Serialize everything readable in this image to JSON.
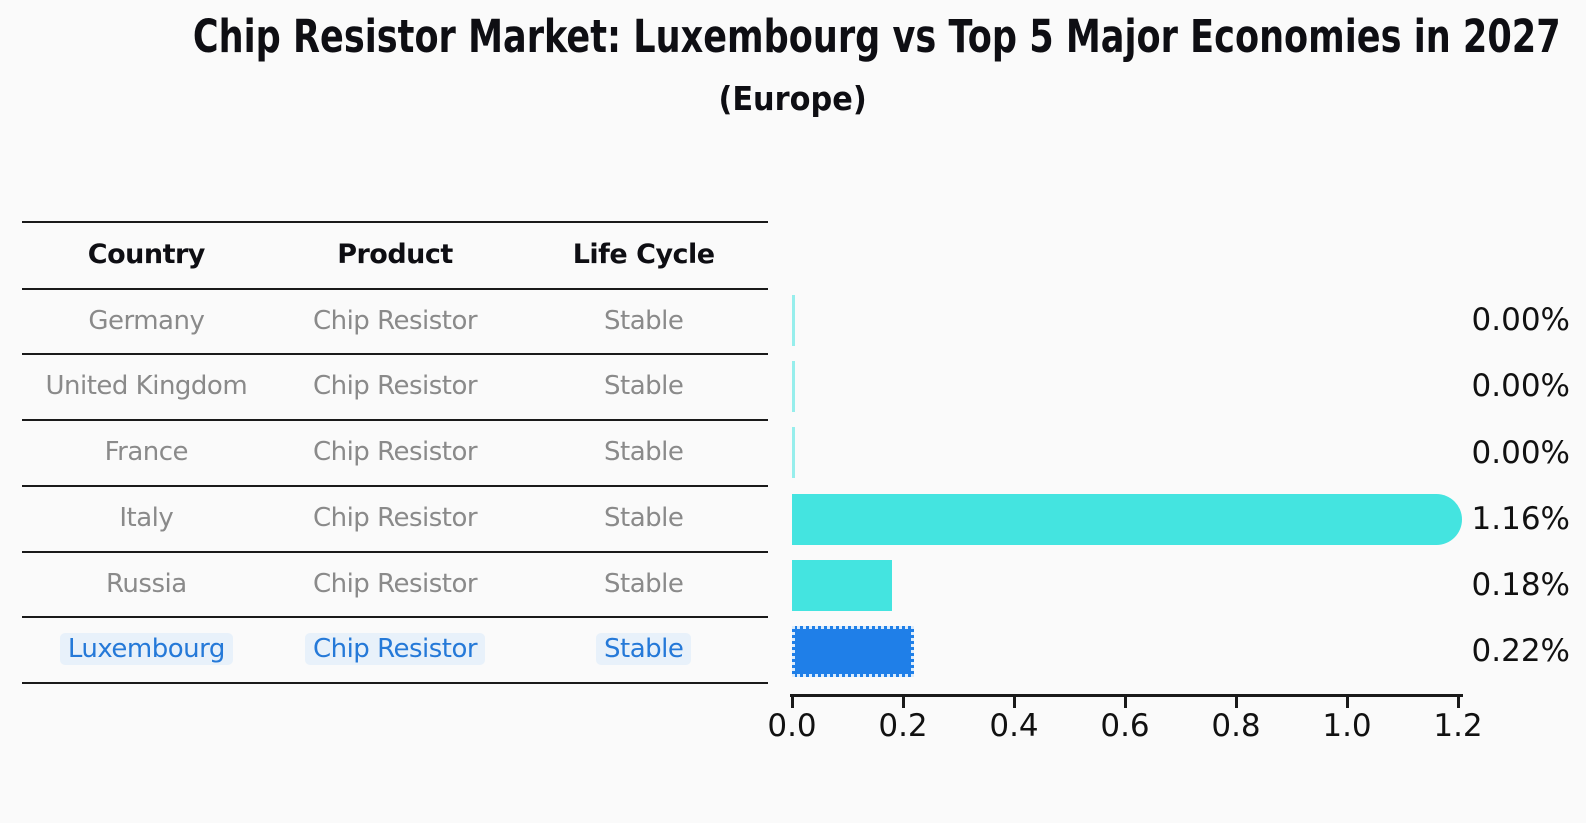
{
  "title": "Chip Resistor Market: Luxembourg vs Top 5 Major Economies in 2027",
  "subtitle": "(Europe)",
  "table": {
    "headers": [
      "Country",
      "Product",
      "Life Cycle"
    ],
    "rows": [
      {
        "country": "Germany",
        "product": "Chip Resistor",
        "life_cycle": "Stable",
        "highlight": false
      },
      {
        "country": "United Kingdom",
        "product": "Chip Resistor",
        "life_cycle": "Stable",
        "highlight": false
      },
      {
        "country": "France",
        "product": "Chip Resistor",
        "life_cycle": "Stable",
        "highlight": false
      },
      {
        "country": "Italy",
        "product": "Chip Resistor",
        "life_cycle": "Stable",
        "highlight": false
      },
      {
        "country": "Russia",
        "product": "Chip Resistor",
        "life_cycle": "Stable",
        "highlight": false
      },
      {
        "country": "Luxembourg",
        "product": "Chip Resistor",
        "life_cycle": "Stable",
        "highlight": true
      }
    ]
  },
  "chart_data": {
    "type": "bar",
    "orientation": "horizontal",
    "title": "Chip Resistor Market: Luxembourg vs Top 5 Major Economies in 2027",
    "subtitle": "(Europe)",
    "categories": [
      "Germany",
      "United Kingdom",
      "France",
      "Italy",
      "Russia",
      "Luxembourg"
    ],
    "values": [
      0.0,
      0.0,
      0.0,
      1.16,
      0.18,
      0.22
    ],
    "value_labels": [
      "0.00%",
      "0.00%",
      "0.00%",
      "1.16%",
      "0.18%",
      "0.22%"
    ],
    "xlim": [
      0.0,
      1.2
    ],
    "x_ticks": [
      "0.0",
      "0.2",
      "0.4",
      "0.6",
      "0.8",
      "1.0",
      "1.2"
    ],
    "grid": false,
    "legend": "none",
    "colors": {
      "bar_default": "#44e4e0",
      "bar_highlight": "#1f7fe8",
      "highlight_text": "#2579d8",
      "axis": "#1a1a1a",
      "body_text": "#8a8a8a"
    }
  }
}
